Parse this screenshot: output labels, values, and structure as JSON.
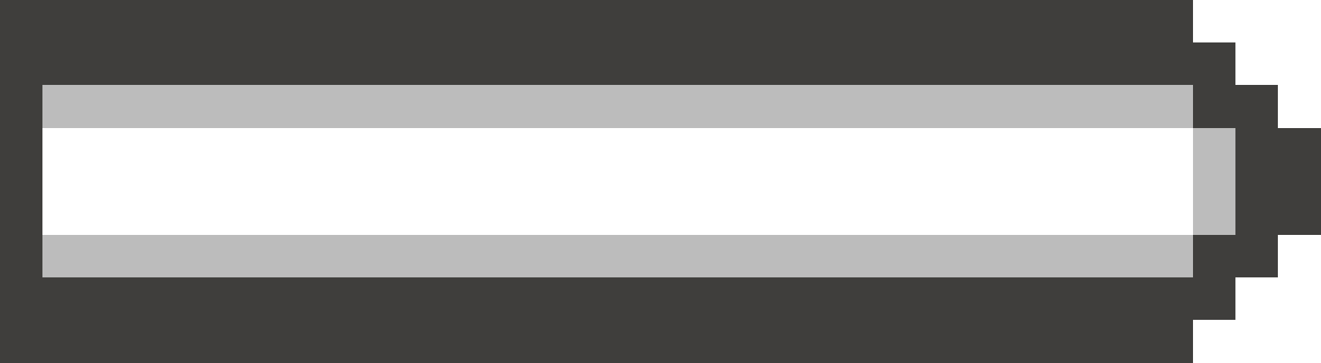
{
  "icon": {
    "name": "battery-icon",
    "orientation": "horizontal",
    "style": "pixel-art"
  },
  "colors": {
    "outline": "#3f3e3c",
    "shading": "#bcbcbc",
    "fill": "#ffffff",
    "background": "#ffffff"
  },
  "battery": {
    "charge_level": 0
  }
}
